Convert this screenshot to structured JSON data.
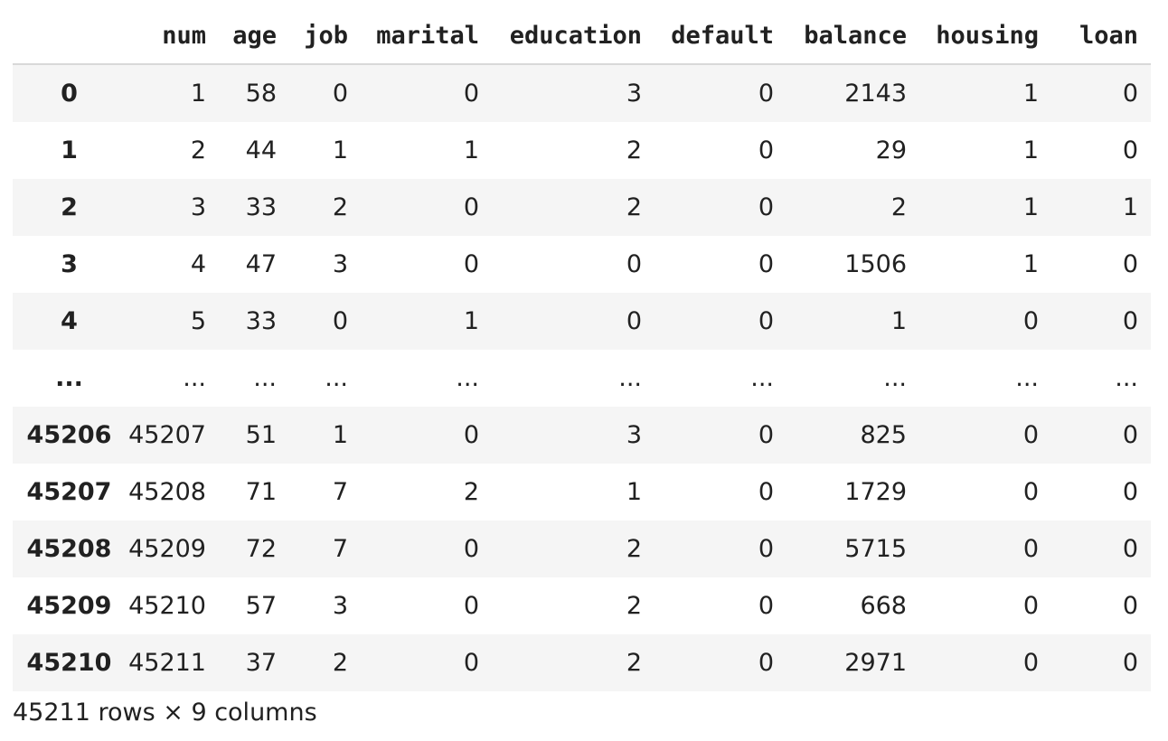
{
  "table": {
    "columns": [
      "num",
      "age",
      "job",
      "marital",
      "education",
      "default",
      "balance",
      "housing",
      "loan"
    ],
    "rows": [
      {
        "index": "0",
        "cells": [
          "1",
          "58",
          "0",
          "0",
          "3",
          "0",
          "2143",
          "1",
          "0"
        ]
      },
      {
        "index": "1",
        "cells": [
          "2",
          "44",
          "1",
          "1",
          "2",
          "0",
          "29",
          "1",
          "0"
        ]
      },
      {
        "index": "2",
        "cells": [
          "3",
          "33",
          "2",
          "0",
          "2",
          "0",
          "2",
          "1",
          "1"
        ]
      },
      {
        "index": "3",
        "cells": [
          "4",
          "47",
          "3",
          "0",
          "0",
          "0",
          "1506",
          "1",
          "0"
        ]
      },
      {
        "index": "4",
        "cells": [
          "5",
          "33",
          "0",
          "1",
          "0",
          "0",
          "1",
          "0",
          "0"
        ]
      },
      {
        "index": "...",
        "cells": [
          "...",
          "...",
          "...",
          "...",
          "...",
          "...",
          "...",
          "...",
          "..."
        ]
      },
      {
        "index": "45206",
        "cells": [
          "45207",
          "51",
          "1",
          "0",
          "3",
          "0",
          "825",
          "0",
          "0"
        ]
      },
      {
        "index": "45207",
        "cells": [
          "45208",
          "71",
          "7",
          "2",
          "1",
          "0",
          "1729",
          "0",
          "0"
        ]
      },
      {
        "index": "45208",
        "cells": [
          "45209",
          "72",
          "7",
          "0",
          "2",
          "0",
          "5715",
          "0",
          "0"
        ]
      },
      {
        "index": "45209",
        "cells": [
          "45210",
          "57",
          "3",
          "0",
          "2",
          "0",
          "668",
          "0",
          "0"
        ]
      },
      {
        "index": "45210",
        "cells": [
          "45211",
          "37",
          "2",
          "0",
          "2",
          "0",
          "2971",
          "0",
          "0"
        ]
      }
    ]
  },
  "footer": {
    "summary": "45211 rows × 9 columns"
  }
}
